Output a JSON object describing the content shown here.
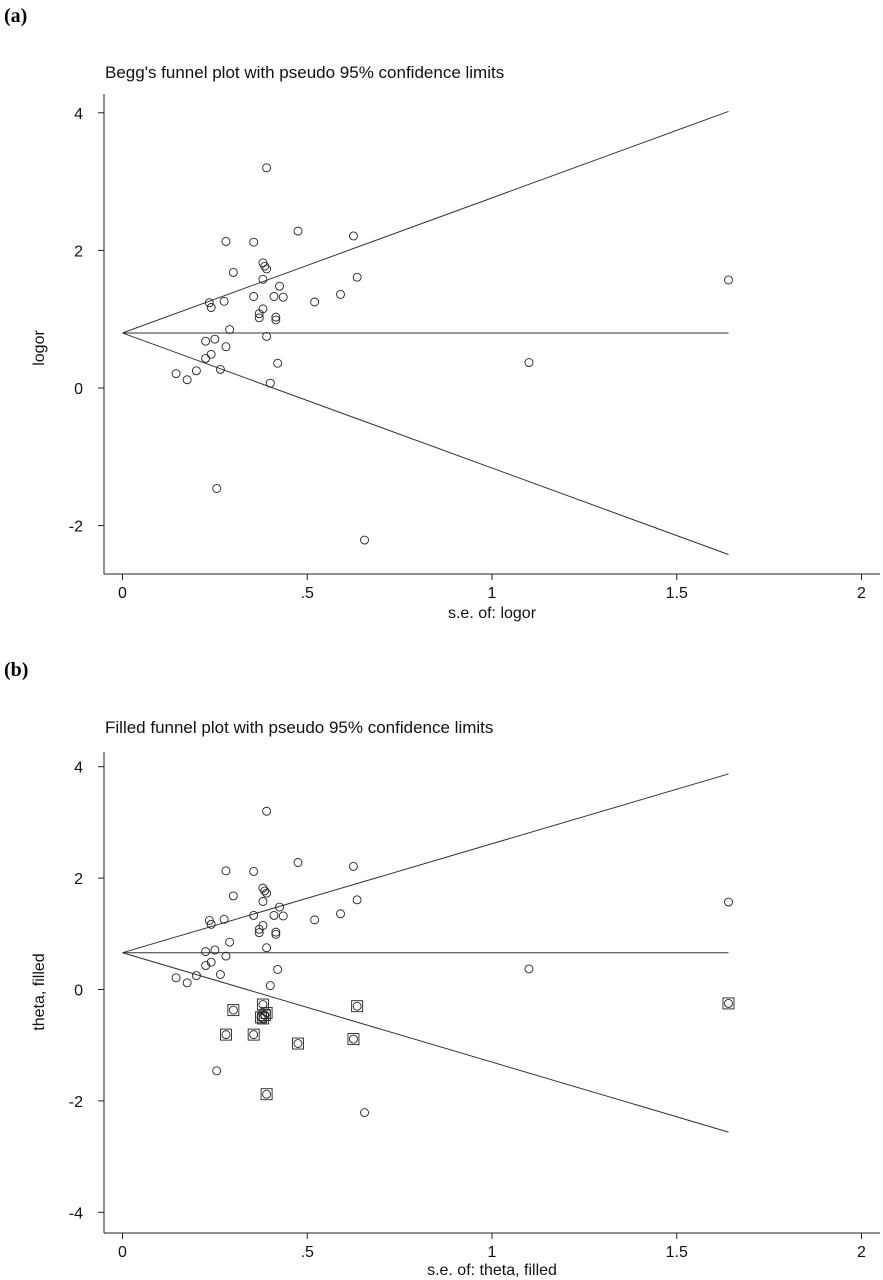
{
  "chart_data": [
    {
      "type": "scatter",
      "panel_label": "(a)",
      "title": "Begg's funnel plot with pseudo 95% confidence limits",
      "xlabel": "s.e. of: logor",
      "ylabel": "logor",
      "xlim": [
        0,
        2
      ],
      "ylim": [
        -2.6,
        4.3
      ],
      "xticks": [
        0,
        0.5,
        1,
        1.5,
        2
      ],
      "xtick_labels": [
        "0",
        ".5",
        "1",
        "1.5",
        "2"
      ],
      "yticks": [
        -2,
        0,
        2,
        4
      ],
      "ytick_labels": [
        "-2",
        "0",
        "2",
        "4"
      ],
      "pooled_estimate": 0.8,
      "confidence_lines": {
        "apex": [
          0,
          0.8
        ],
        "upper_end": [
          1.64,
          4.02
        ],
        "lower_end": [
          1.64,
          -2.42
        ],
        "center_end": [
          1.64,
          0.8
        ]
      },
      "series": [
        {
          "marker": "circle",
          "x": [
            0.39,
            0.28,
            0.355,
            0.475,
            0.625,
            0.38,
            0.385,
            0.39,
            0.3,
            0.38,
            0.635,
            0.275,
            0.235,
            0.24,
            0.355,
            0.41,
            0.425,
            0.435,
            0.52,
            0.59,
            0.38,
            0.37,
            0.37,
            0.415,
            0.415,
            0.29,
            0.39,
            0.225,
            0.25,
            0.28,
            0.225,
            0.24,
            0.42,
            0.2,
            0.265,
            0.145,
            0.175,
            0.4,
            1.1,
            1.64,
            0.255,
            0.655
          ],
          "y": [
            3.2,
            2.13,
            2.12,
            2.28,
            2.21,
            1.82,
            1.77,
            1.73,
            1.68,
            1.58,
            1.61,
            1.26,
            1.24,
            1.17,
            1.33,
            1.33,
            1.48,
            1.32,
            1.25,
            1.36,
            1.15,
            1.08,
            1.02,
            1.03,
            0.99,
            0.85,
            0.75,
            0.68,
            0.71,
            0.6,
            0.43,
            0.49,
            0.36,
            0.25,
            0.27,
            0.21,
            0.12,
            0.07,
            0.37,
            1.57,
            -1.46,
            -2.21
          ]
        }
      ]
    },
    {
      "type": "scatter",
      "panel_label": "(b)",
      "title": "Filled funnel plot with pseudo 95% confidence limits",
      "xlabel": "s.e. of: theta, filled",
      "ylabel": "theta, filled",
      "xlim": [
        0,
        2
      ],
      "ylim": [
        -4.3,
        4.3
      ],
      "xticks": [
        0,
        0.5,
        1,
        1.5,
        2
      ],
      "xtick_labels": [
        "0",
        ".5",
        "1",
        "1.5",
        "2"
      ],
      "yticks": [
        -4,
        -2,
        0,
        2,
        4
      ],
      "ytick_labels": [
        "-4",
        "-2",
        "0",
        "2",
        "4"
      ],
      "pooled_estimate": 0.66,
      "confidence_lines": {
        "apex": [
          0,
          0.66
        ],
        "upper_end": [
          1.64,
          3.87
        ],
        "lower_end": [
          1.64,
          -2.56
        ],
        "center_end": [
          1.64,
          0.66
        ]
      },
      "series": [
        {
          "marker": "circle",
          "x": [
            0.39,
            0.28,
            0.355,
            0.475,
            0.625,
            0.38,
            0.385,
            0.39,
            0.3,
            0.38,
            0.635,
            0.275,
            0.235,
            0.24,
            0.355,
            0.41,
            0.425,
            0.435,
            0.52,
            0.59,
            0.38,
            0.37,
            0.37,
            0.415,
            0.415,
            0.29,
            0.39,
            0.225,
            0.25,
            0.28,
            0.225,
            0.24,
            0.42,
            0.2,
            0.265,
            0.145,
            0.175,
            0.4,
            1.1,
            1.64,
            0.255,
            0.655
          ],
          "y": [
            3.2,
            2.13,
            2.12,
            2.28,
            2.21,
            1.82,
            1.77,
            1.73,
            1.68,
            1.58,
            1.61,
            1.26,
            1.24,
            1.17,
            1.33,
            1.33,
            1.48,
            1.32,
            1.25,
            1.36,
            1.15,
            1.08,
            1.02,
            1.03,
            0.99,
            0.85,
            0.75,
            0.68,
            0.71,
            0.6,
            0.43,
            0.49,
            0.36,
            0.25,
            0.27,
            0.21,
            0.12,
            0.07,
            0.37,
            1.57,
            -1.46,
            -2.21
          ]
        },
        {
          "marker": "circle-in-square",
          "x": [
            0.3,
            0.635,
            0.38,
            0.39,
            0.385,
            0.375,
            0.38,
            0.28,
            0.355,
            0.475,
            0.625,
            0.39,
            1.64
          ],
          "y": [
            -0.37,
            -0.3,
            -0.27,
            -0.42,
            -0.46,
            -0.5,
            -0.52,
            -0.81,
            -0.81,
            -0.97,
            -0.89,
            -1.88,
            -0.25
          ]
        }
      ]
    }
  ]
}
